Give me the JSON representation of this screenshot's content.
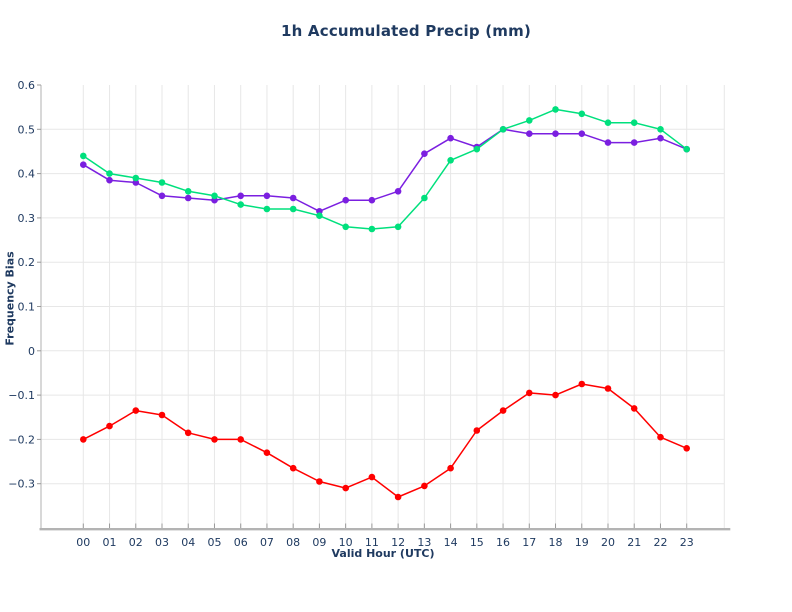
{
  "title": "1h Accumulated Precip (mm)",
  "chart_data": {
    "type": "line",
    "title": "1h Accumulated Precip (mm)",
    "xlabel": "Valid Hour (UTC)",
    "ylabel": "Frequency Bias",
    "x_ticklabels": [
      "00",
      "01",
      "02",
      "03",
      "04",
      "05",
      "06",
      "07",
      "08",
      "09",
      "10",
      "11",
      "12",
      "13",
      "14",
      "15",
      "16",
      "17",
      "18",
      "19",
      "20",
      "21",
      "22",
      "23"
    ],
    "y_ticks": [
      0.6,
      0.5,
      0.4,
      0.3,
      0.2,
      0.1,
      0,
      -0.1,
      -0.2,
      -0.3
    ],
    "y_ticklabels": [
      "0.6",
      "0.5",
      "0.4",
      "0.3",
      "0.2",
      "0.1",
      "0",
      "−0.1",
      "−0.2",
      "−0.3"
    ],
    "ylim": [
      -0.4,
      0.6
    ],
    "grid": true,
    "legend_position": "none",
    "series": [
      {
        "name": "red-line",
        "color": "#ff0000",
        "marker": "circle",
        "values": [
          -0.2,
          -0.17,
          -0.135,
          -0.145,
          -0.185,
          -0.2,
          -0.2,
          -0.23,
          -0.265,
          -0.295,
          -0.31,
          -0.285,
          -0.33,
          -0.305,
          -0.265,
          -0.18,
          -0.135,
          -0.095,
          -0.1,
          -0.075,
          -0.085,
          -0.13,
          -0.195,
          -0.22
        ]
      },
      {
        "name": "purple-line",
        "color": "#7b1fe0",
        "marker": "circle",
        "values": [
          0.42,
          0.385,
          0.38,
          0.35,
          0.345,
          0.34,
          0.35,
          0.35,
          0.345,
          0.315,
          0.34,
          0.34,
          0.36,
          0.445,
          0.48,
          0.46,
          0.5,
          0.49,
          0.49,
          0.49,
          0.47,
          0.47,
          0.48,
          0.455
        ]
      },
      {
        "name": "green-line",
        "color": "#00e07d",
        "marker": "circle",
        "values": [
          0.44,
          0.4,
          0.39,
          0.38,
          0.36,
          0.35,
          0.33,
          0.32,
          0.32,
          0.305,
          0.28,
          0.275,
          0.28,
          0.345,
          0.43,
          0.455,
          0.5,
          0.52,
          0.545,
          0.535,
          0.515,
          0.515,
          0.5,
          0.455
        ]
      }
    ],
    "styles": {
      "text_color": "#1f3a60",
      "grid_color": "#e7e7e7",
      "spine_left_color": "#c2c2c2",
      "spine_bottom_color": "#b3b3b3",
      "tick_color": "#9a9a9a",
      "background": "#ffffff"
    }
  }
}
